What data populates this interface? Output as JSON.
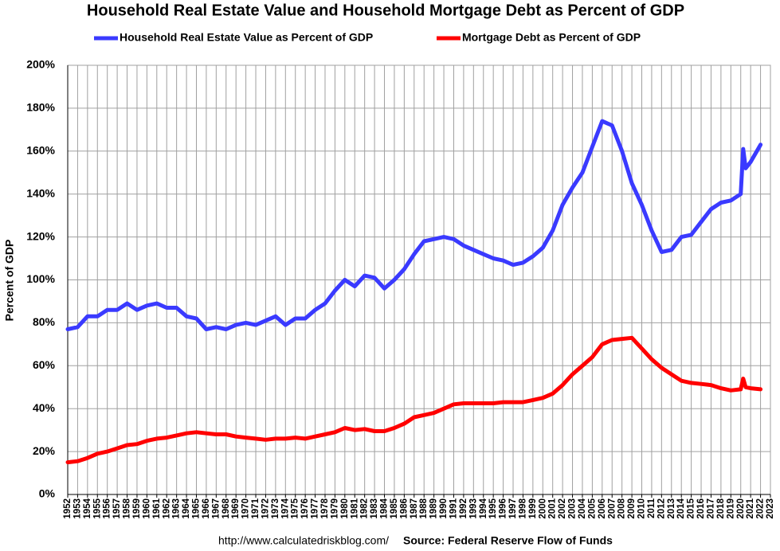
{
  "chart_data": {
    "type": "line",
    "title": "Household Real Estate Value and Household Mortgage Debt as Percent of GDP",
    "y_label": "Percent of GDP",
    "url": "http://www.calculatedriskblog.com/",
    "source": "Source: Federal Reserve Flow of Funds",
    "grid": true,
    "legend": "top",
    "x": [
      1952,
      1953,
      1954,
      1955,
      1956,
      1957,
      1958,
      1959,
      1960,
      1961,
      1962,
      1963,
      1964,
      1965,
      1966,
      1967,
      1968,
      1969,
      1970,
      1971,
      1972,
      1973,
      1974,
      1975,
      1976,
      1977,
      1978,
      1979,
      1980,
      1981,
      1982,
      1983,
      1984,
      1985,
      1986,
      1987,
      1988,
      1989,
      1990,
      1991,
      1992,
      1993,
      1994,
      1995,
      1996,
      1997,
      1998,
      1999,
      2000,
      2001,
      2002,
      2003,
      2004,
      2005,
      2006,
      2007,
      2008,
      2009,
      2010,
      2011,
      2012,
      2013,
      2014,
      2015,
      2016,
      2017,
      2018,
      2019,
      2020,
      2020.25,
      2020.5,
      2021,
      2022
    ],
    "series": [
      {
        "name": "Household Real Estate Value as Percent of GDP",
        "color": "#3a3aff",
        "values": [
          77,
          78,
          83,
          83,
          86,
          86,
          89,
          86,
          88,
          89,
          87,
          87,
          83,
          82,
          77,
          78,
          77,
          79,
          80,
          79,
          81,
          83,
          79,
          82,
          82,
          86,
          89,
          95,
          100,
          97,
          102,
          101,
          96,
          100,
          105,
          112,
          118,
          119,
          120,
          119,
          116,
          114,
          112,
          110,
          109,
          107,
          108,
          111,
          115,
          123,
          135,
          143,
          150,
          162,
          174,
          172,
          160,
          145,
          135,
          123,
          113,
          114,
          120,
          121,
          127,
          133,
          136,
          137,
          140,
          161,
          152,
          155,
          163
        ]
      },
      {
        "name": "Mortgage Debt as Percent of GDP",
        "color": "#ff0000",
        "values": [
          15,
          15.5,
          17,
          19,
          20,
          21.5,
          23,
          23.5,
          25,
          26,
          26.5,
          27.5,
          28.5,
          29,
          28.5,
          28,
          28,
          27,
          26.5,
          26,
          25.5,
          26,
          26,
          26.5,
          26,
          27,
          28,
          29,
          31,
          30,
          30.5,
          29.5,
          29.5,
          31,
          33,
          36,
          37,
          38,
          40,
          42,
          42.5,
          42.5,
          42.5,
          42.5,
          43,
          43,
          43,
          44,
          45,
          47,
          51,
          56,
          60,
          64,
          70,
          72,
          72.5,
          73,
          68,
          63,
          59,
          56,
          53,
          52,
          51.5,
          51,
          49.5,
          48.5,
          49,
          54,
          50,
          49.5,
          49
        ]
      }
    ],
    "xlim": [
      1952,
      2023
    ],
    "xticks": [
      1952,
      1953,
      1954,
      1955,
      1956,
      1957,
      1958,
      1959,
      1960,
      1961,
      1962,
      1963,
      1964,
      1965,
      1966,
      1967,
      1968,
      1969,
      1970,
      1971,
      1972,
      1973,
      1974,
      1975,
      1976,
      1977,
      1978,
      1979,
      1980,
      1981,
      1982,
      1983,
      1984,
      1985,
      1986,
      1987,
      1988,
      1989,
      1990,
      1991,
      1992,
      1993,
      1994,
      1995,
      1996,
      1997,
      1998,
      1999,
      2000,
      2001,
      2002,
      2003,
      2004,
      2005,
      2006,
      2007,
      2008,
      2009,
      2010,
      2011,
      2012,
      2013,
      2014,
      2015,
      2016,
      2017,
      2018,
      2019,
      2020,
      2021,
      2022,
      2023
    ],
    "ylim": [
      0,
      200
    ],
    "yticks": [
      {
        "value": 0,
        "label": "0%"
      },
      {
        "value": 20,
        "label": "20%"
      },
      {
        "value": 40,
        "label": "40%"
      },
      {
        "value": 60,
        "label": "60%"
      },
      {
        "value": 80,
        "label": "80%"
      },
      {
        "value": 100,
        "label": "100%"
      },
      {
        "value": 120,
        "label": "120%"
      },
      {
        "value": 140,
        "label": "140%"
      },
      {
        "value": 160,
        "label": "160%"
      },
      {
        "value": 180,
        "label": "180%"
      },
      {
        "value": 200,
        "label": "200%"
      }
    ]
  }
}
